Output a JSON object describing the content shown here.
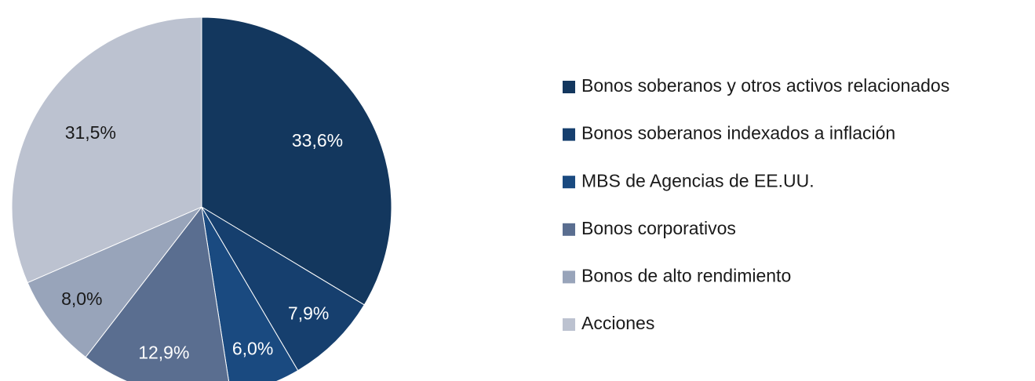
{
  "chart_data": {
    "type": "pie",
    "categories": [
      "Bonos soberanos y otros activos relacionados",
      "Bonos soberanos indexados a inflación",
      "MBS de Agencias de EE.UU.",
      "Bonos corporativos",
      "Bonos de alto rendimiento",
      "Acciones"
    ],
    "values": [
      33.6,
      7.9,
      6.0,
      12.9,
      8.0,
      31.5
    ],
    "value_labels": [
      "33,6%",
      "7,9%",
      "6,0%",
      "12,9%",
      "8,0%",
      "31,5%"
    ],
    "colors": [
      "#13375e",
      "#163f6e",
      "#1a4a80",
      "#5a6e90",
      "#98a4ba",
      "#bcc2d0"
    ],
    "legend": "right"
  }
}
